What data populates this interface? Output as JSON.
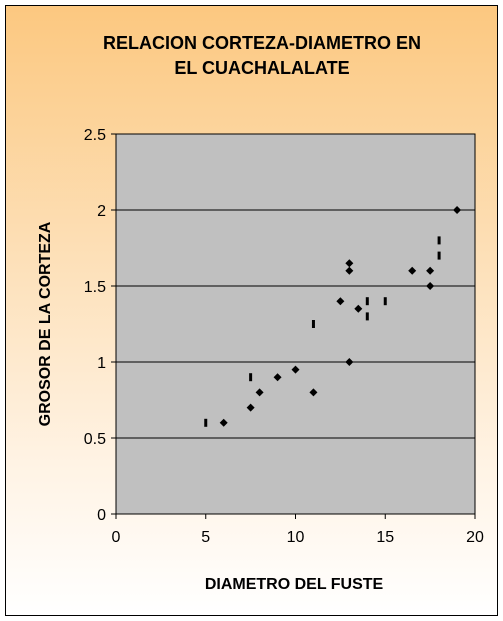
{
  "chart_data": {
    "type": "scatter",
    "title_lines": [
      "RELACION CORTEZA-DIAMETRO EN",
      "EL CUACHALALATE"
    ],
    "xlabel": "DIAMETRO DEL FUSTE",
    "ylabel": "GROSOR DE LA CORTEZA",
    "xlim": [
      0,
      20
    ],
    "ylim": [
      0,
      2.5
    ],
    "xticks": [
      0,
      5,
      10,
      15,
      20
    ],
    "yticks": [
      0,
      0.5,
      1,
      1.5,
      2,
      2.5
    ],
    "ytick_labels": [
      "0",
      "0.5",
      "1",
      "1.5",
      "2",
      "2.5"
    ],
    "grid": "horizontal",
    "legend": "none",
    "plot_background": "#c0c0c0",
    "series": [
      {
        "marker": "diamond",
        "color": "#000000",
        "points": [
          {
            "x": 6,
            "y": 0.6
          },
          {
            "x": 7.5,
            "y": 0.7
          },
          {
            "x": 8,
            "y": 0.8
          },
          {
            "x": 9,
            "y": 0.9
          },
          {
            "x": 10,
            "y": 0.95
          },
          {
            "x": 11,
            "y": 0.8
          },
          {
            "x": 12.5,
            "y": 1.4
          },
          {
            "x": 13,
            "y": 1.65
          },
          {
            "x": 13,
            "y": 1.6
          },
          {
            "x": 13,
            "y": 1.0
          },
          {
            "x": 13.5,
            "y": 1.35
          },
          {
            "x": 16.5,
            "y": 1.6
          },
          {
            "x": 17.5,
            "y": 1.6
          },
          {
            "x": 17.5,
            "y": 1.5
          },
          {
            "x": 19,
            "y": 2.0
          }
        ]
      },
      {
        "marker": "dash",
        "color": "#000000",
        "points": [
          {
            "x": 5,
            "y": 0.6
          },
          {
            "x": 7.5,
            "y": 0.9
          },
          {
            "x": 11,
            "y": 1.25
          },
          {
            "x": 14,
            "y": 1.4
          },
          {
            "x": 14,
            "y": 1.3
          },
          {
            "x": 15,
            "y": 1.4
          },
          {
            "x": 18,
            "y": 1.8
          },
          {
            "x": 18,
            "y": 1.7
          }
        ]
      }
    ]
  }
}
